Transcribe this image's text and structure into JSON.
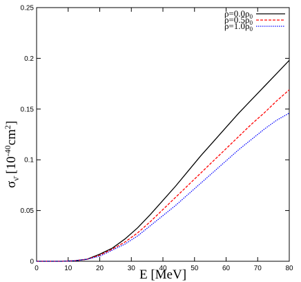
{
  "chart_data": {
    "type": "line",
    "xlabel": "E [MeV]",
    "ylabel": "σν [10⁻⁴⁰cm²]",
    "ylabel_base": "σ",
    "ylabel_sub": "ν̄",
    "ylabel_unit_open": "[10",
    "ylabel_unit_exp": "-40",
    "ylabel_unit_cm": "cm",
    "ylabel_unit_cm_exp": "2",
    "ylabel_unit_close": "]",
    "xlim": [
      0,
      80
    ],
    "ylim": [
      0,
      0.25
    ],
    "xticks": [
      0,
      10,
      20,
      30,
      40,
      50,
      60,
      70,
      80
    ],
    "yticks": [
      0,
      0.05,
      0.1,
      0.15,
      0.2,
      0.25
    ],
    "xtick_labels": [
      "0",
      "10",
      "20",
      "30",
      "40",
      "50",
      "60",
      "70",
      "80"
    ],
    "ytick_labels": [
      "0",
      "0.05",
      "0.1",
      "0.15",
      "0.2",
      "0.25"
    ],
    "grid": false,
    "legend_position": "top-right",
    "series": [
      {
        "name": "ρ=0.0ρ0",
        "name_main": "ρ=0.0ρ",
        "name_sub": "0",
        "color": "#000000",
        "dash": "solid",
        "x": [
          0,
          4,
          8,
          12,
          16,
          20,
          24,
          28,
          32,
          36,
          40,
          44,
          48,
          52,
          56,
          60,
          64,
          68,
          72,
          76,
          80
        ],
        "y": [
          0,
          0,
          0,
          0.0005,
          0.002,
          0.007,
          0.013,
          0.022,
          0.033,
          0.046,
          0.06,
          0.074,
          0.089,
          0.104,
          0.118,
          0.132,
          0.146,
          0.159,
          0.172,
          0.185,
          0.198
        ]
      },
      {
        "name": "ρ=0.5ρ0",
        "name_main": "ρ=0.5ρ",
        "name_sub": "0",
        "color": "#ff0000",
        "dash": "dashed",
        "x": [
          0,
          4,
          8,
          12,
          16,
          20,
          24,
          28,
          32,
          36,
          40,
          44,
          48,
          52,
          56,
          60,
          64,
          68,
          72,
          76,
          80
        ],
        "y": [
          0,
          0,
          0,
          0.0005,
          0.002,
          0.006,
          0.012,
          0.019,
          0.028,
          0.039,
          0.051,
          0.063,
          0.075,
          0.087,
          0.099,
          0.111,
          0.123,
          0.135,
          0.146,
          0.158,
          0.169
        ]
      },
      {
        "name": "ρ=1.0ρ0",
        "name_main": "ρ=1.0ρ",
        "name_sub": "0",
        "color": "#0000ff",
        "dash": "dotted",
        "x": [
          0,
          4,
          8,
          12,
          16,
          20,
          24,
          28,
          32,
          36,
          40,
          44,
          48,
          52,
          56,
          60,
          64,
          68,
          72,
          76,
          80
        ],
        "y": [
          0,
          0,
          0,
          0.0005,
          0.002,
          0.005,
          0.011,
          0.017,
          0.025,
          0.035,
          0.045,
          0.055,
          0.066,
          0.077,
          0.088,
          0.099,
          0.11,
          0.12,
          0.13,
          0.139,
          0.146
        ]
      }
    ]
  }
}
